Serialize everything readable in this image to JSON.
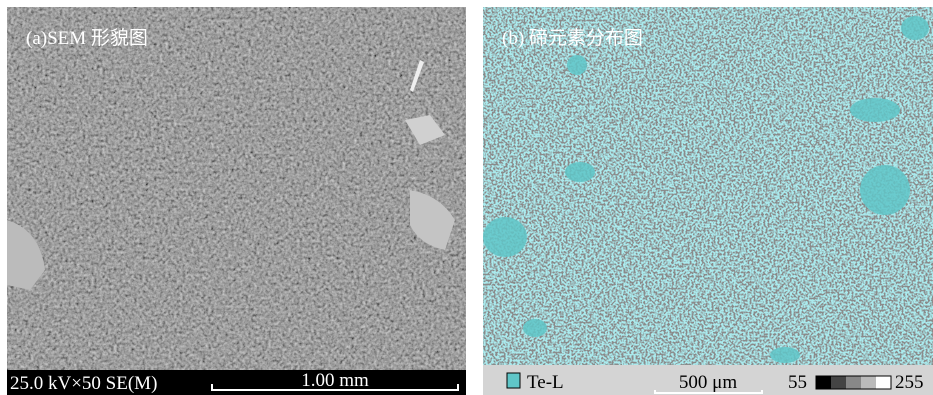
{
  "panels": [
    {
      "label": "(a)SEM 形貌图",
      "info": "25.0 kV×50 SE(M)",
      "scale": "1.00 mm"
    },
    {
      "label": "(b) 碲元素分布图",
      "legend": "Te-L",
      "scale": "500 μm",
      "range_min": "55",
      "range_max": "255"
    }
  ]
}
